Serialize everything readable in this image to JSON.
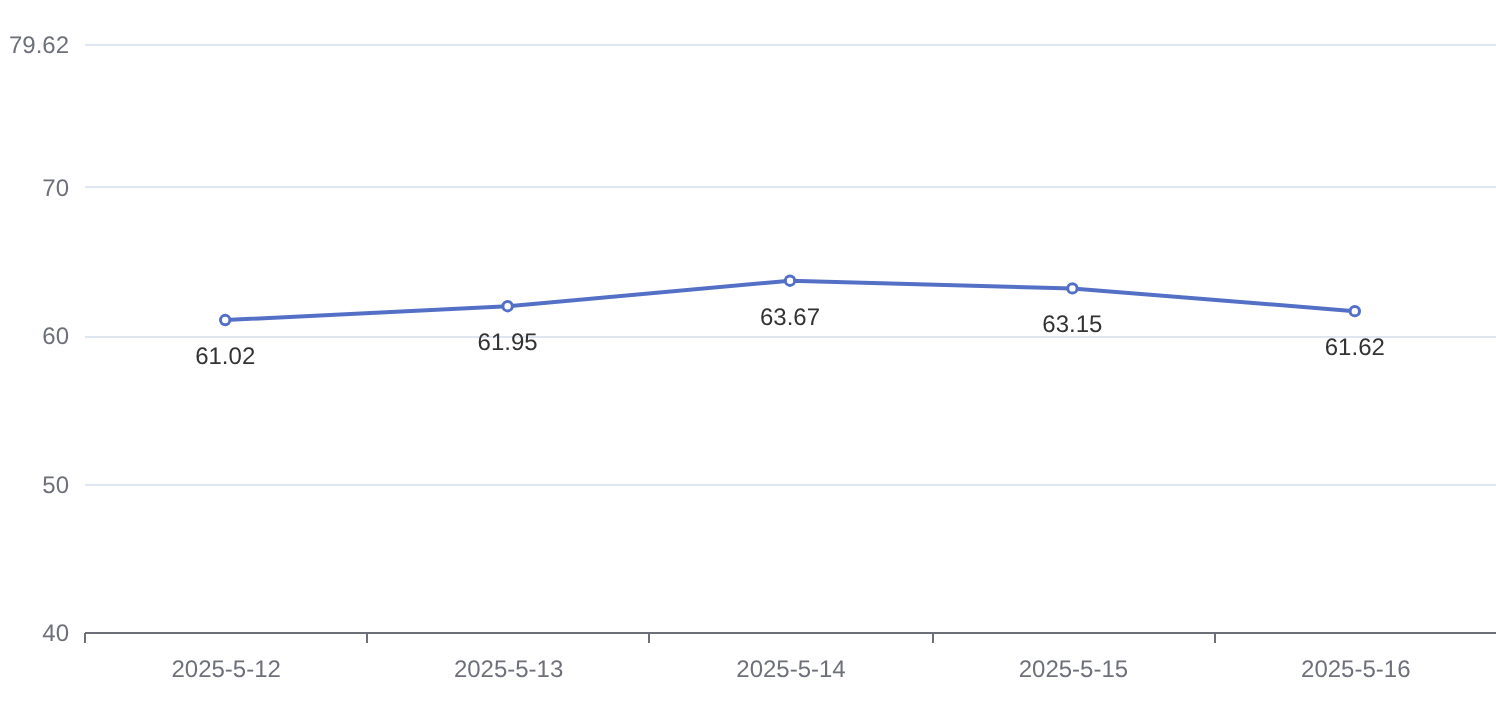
{
  "chart_data": {
    "type": "line",
    "categories": [
      "2025-5-12",
      "2025-5-13",
      "2025-5-14",
      "2025-5-15",
      "2025-5-16"
    ],
    "series": [
      {
        "color": "#5470c6",
        "values": [
          61.02,
          61.95,
          63.67,
          63.15,
          61.62
        ]
      }
    ],
    "ylim": [
      40,
      79.62
    ],
    "yticks": [
      40,
      50,
      60,
      70,
      79.62
    ],
    "grid": "y",
    "marker": "circle",
    "line_style": "solid",
    "data_labels": true
  }
}
